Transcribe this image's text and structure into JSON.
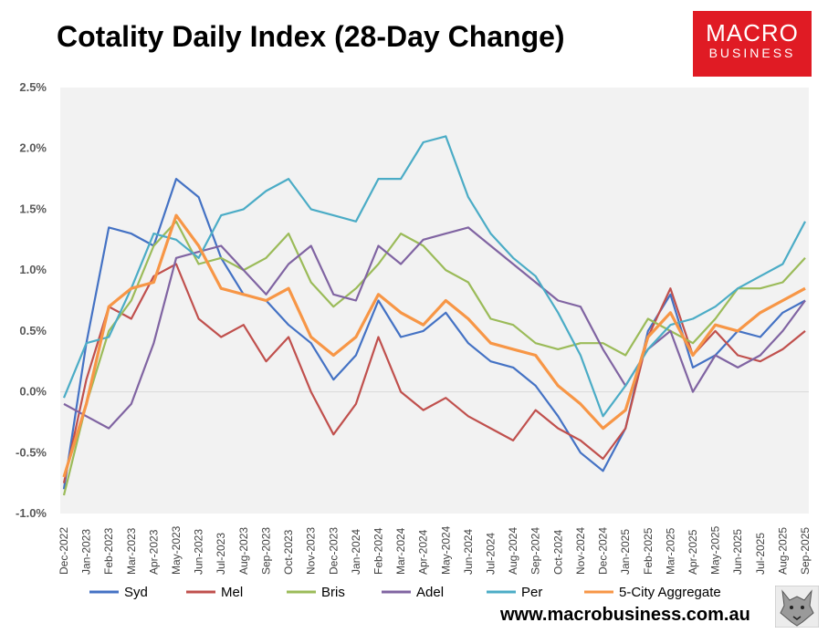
{
  "title": "Cotality Daily Index (28-Day Change)",
  "logo": {
    "line1": "MACRO",
    "line2": "BUSINESS"
  },
  "website": "www.macrobusiness.com.au",
  "chart_data": {
    "type": "line",
    "title": "Cotality Daily Index (28-Day Change)",
    "xlabel": "",
    "ylabel": "",
    "ylim": [
      -1.0,
      2.5
    ],
    "yticks": [
      "-1.0%",
      "-0.5%",
      "0.0%",
      "0.5%",
      "1.0%",
      "1.5%",
      "2.0%",
      "2.5%"
    ],
    "x": [
      "Dec-2022",
      "Jan-2023",
      "Feb-2023",
      "Mar-2023",
      "Apr-2023",
      "May-2023",
      "Jun-2023",
      "Jul-2023",
      "Aug-2023",
      "Sep-2023",
      "Oct-2023",
      "Nov-2023",
      "Dec-2023",
      "Jan-2024",
      "Feb-2024",
      "Mar-2024",
      "Apr-2024",
      "May-2024",
      "Jun-2024",
      "Jul-2024",
      "Aug-2024",
      "Sep-2024",
      "Oct-2024",
      "Nov-2024",
      "Dec-2024",
      "Jan-2025",
      "Feb-2025",
      "Mar-2025",
      "Apr-2025",
      "May-2025",
      "Jun-2025",
      "Jul-2025",
      "Aug-2025",
      "Sep-2025"
    ],
    "grid": false,
    "legend_position": "bottom",
    "series": [
      {
        "name": "Syd",
        "color": "#4472c4",
        "values": [
          -0.8,
          0.4,
          1.35,
          1.3,
          1.2,
          1.75,
          1.6,
          1.1,
          0.8,
          0.75,
          0.55,
          0.4,
          0.1,
          0.3,
          0.75,
          0.45,
          0.5,
          0.65,
          0.4,
          0.25,
          0.2,
          0.05,
          -0.2,
          -0.5,
          -0.65,
          -0.3,
          0.5,
          0.8,
          0.2,
          0.3,
          0.5,
          0.45,
          0.65,
          0.75
        ]
      },
      {
        "name": "Mel",
        "color": "#c0504d",
        "values": [
          -0.75,
          0.1,
          0.7,
          0.6,
          0.95,
          1.05,
          0.6,
          0.45,
          0.55,
          0.25,
          0.45,
          0.0,
          -0.35,
          -0.1,
          0.45,
          0.0,
          -0.15,
          -0.05,
          -0.2,
          -0.3,
          -0.4,
          -0.15,
          -0.3,
          -0.4,
          -0.55,
          -0.3,
          0.45,
          0.85,
          0.3,
          0.5,
          0.3,
          0.25,
          0.35,
          0.5
        ]
      },
      {
        "name": "Bris",
        "color": "#9bbb59",
        "values": [
          -0.85,
          -0.1,
          0.5,
          0.75,
          1.2,
          1.4,
          1.05,
          1.1,
          1.0,
          1.1,
          1.3,
          0.9,
          0.7,
          0.85,
          1.05,
          1.3,
          1.2,
          1.0,
          0.9,
          0.6,
          0.55,
          0.4,
          0.35,
          0.4,
          0.4,
          0.3,
          0.6,
          0.5,
          0.4,
          0.6,
          0.85,
          0.85,
          0.9,
          1.1
        ]
      },
      {
        "name": "Adel",
        "color": "#8064a2",
        "values": [
          -0.1,
          -0.2,
          -0.3,
          -0.1,
          0.4,
          1.1,
          1.15,
          1.2,
          1.0,
          0.8,
          1.05,
          1.2,
          0.8,
          0.75,
          1.2,
          1.05,
          1.25,
          1.3,
          1.35,
          1.2,
          1.05,
          0.9,
          0.75,
          0.7,
          0.35,
          0.05,
          0.35,
          0.5,
          0.0,
          0.3,
          0.2,
          0.3,
          0.5,
          0.75
        ]
      },
      {
        "name": "Per",
        "color": "#4bacc6",
        "values": [
          -0.05,
          0.4,
          0.45,
          0.85,
          1.3,
          1.25,
          1.1,
          1.45,
          1.5,
          1.65,
          1.75,
          1.5,
          1.45,
          1.4,
          1.75,
          1.75,
          2.05,
          2.1,
          1.6,
          1.3,
          1.1,
          0.95,
          0.65,
          0.3,
          -0.2,
          0.05,
          0.35,
          0.55,
          0.6,
          0.7,
          0.85,
          0.95,
          1.05,
          1.4
        ]
      },
      {
        "name": "5-City Aggregate",
        "color": "#f79646",
        "values": [
          -0.7,
          -0.1,
          0.7,
          0.85,
          0.9,
          1.45,
          1.2,
          0.85,
          0.8,
          0.75,
          0.85,
          0.45,
          0.3,
          0.45,
          0.8,
          0.65,
          0.55,
          0.75,
          0.6,
          0.4,
          0.35,
          0.3,
          0.05,
          -0.1,
          -0.3,
          -0.15,
          0.45,
          0.65,
          0.3,
          0.55,
          0.5,
          0.65,
          0.75,
          0.85
        ]
      }
    ]
  }
}
